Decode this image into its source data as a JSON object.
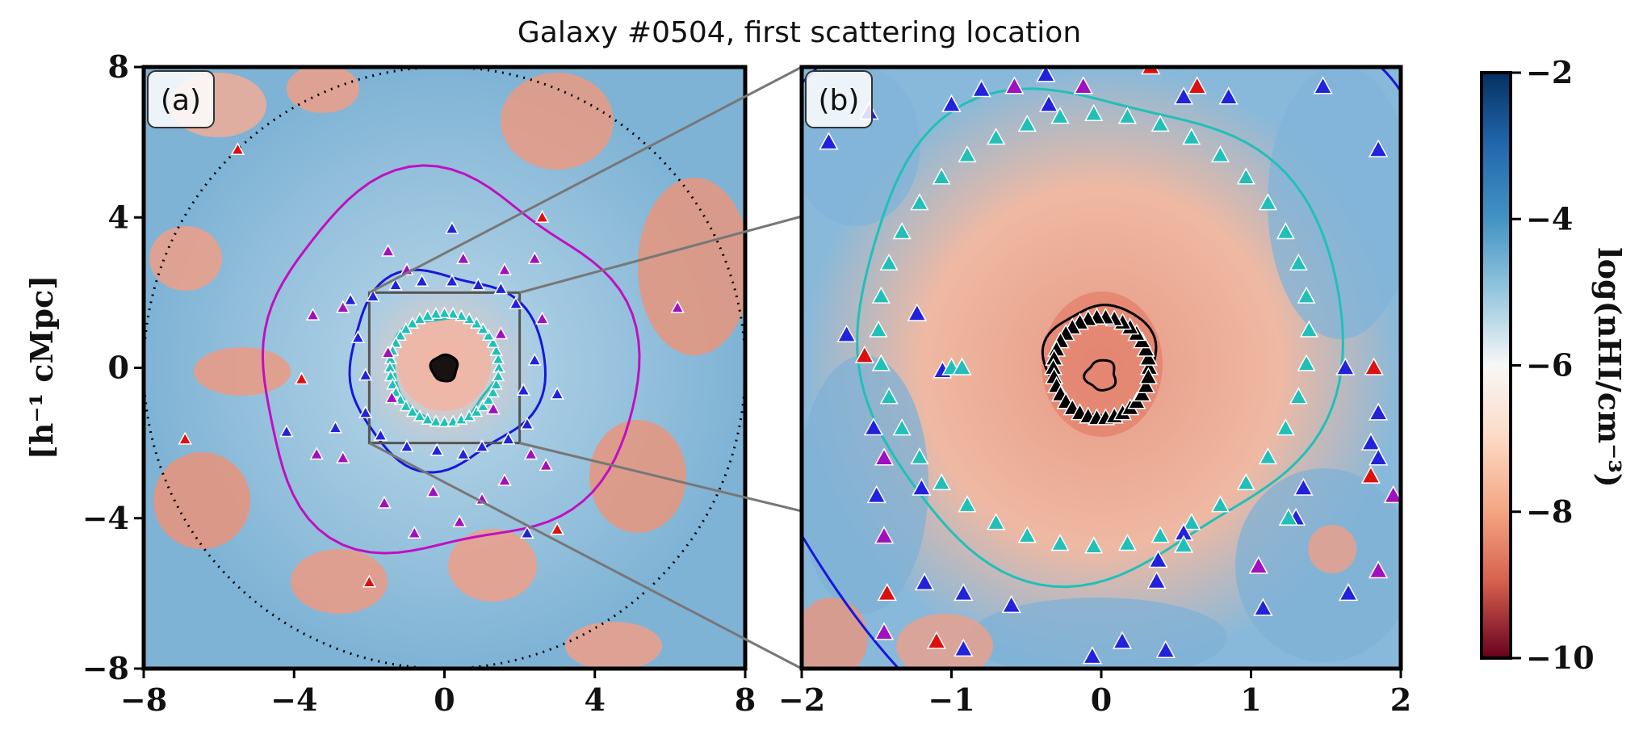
{
  "chart_data": {
    "type": "heatmap",
    "title": "Galaxy #0504, first scattering location",
    "ylabel": "[h⁻¹ cMpc]",
    "colorbar": {
      "label": "log(nₕᵢ/cm⁻³)",
      "label_display": "log(nHI/cm⁻³)",
      "range": [
        -10,
        -2
      ],
      "ticks": [
        -2,
        -4,
        -6,
        -8,
        -10
      ],
      "tick_labels": [
        "−2",
        "−4",
        "−6",
        "−8",
        "−10"
      ],
      "colormap": "RdBu"
    },
    "panels": [
      {
        "id": "a",
        "label": "(a)",
        "xlim": [
          -8,
          8
        ],
        "ylim": [
          -8,
          8
        ],
        "xticks": [
          -8,
          -4,
          0,
          4,
          8
        ],
        "xtick_labels": [
          "−8",
          "−4",
          "0",
          "4",
          "8"
        ],
        "yticks": [
          8,
          4,
          0,
          -4,
          -8
        ],
        "ytick_labels": [
          "8",
          "4",
          "0",
          "−4",
          "−8"
        ],
        "zoom_box": [
          -2,
          2,
          -2,
          2
        ],
        "dotted_circle_radius": 8,
        "contours": [
          {
            "color": "#c010c0",
            "approx_radius": 5.0
          },
          {
            "color": "#1818d8",
            "approx_radius": 2.6
          },
          {
            "color": "#20c0b8",
            "approx_radius": 1.4
          },
          {
            "color": "#000000",
            "approx_radius": 0.35
          }
        ],
        "markers": [
          {
            "x": -5.5,
            "y": 5.8,
            "c": "#dd1010"
          },
          {
            "x": -6.9,
            "y": -1.9,
            "c": "#dd1010"
          },
          {
            "x": -3.8,
            "y": -0.3,
            "c": "#dd1010"
          },
          {
            "x": -2.0,
            "y": -5.7,
            "c": "#dd1010"
          },
          {
            "x": 2.6,
            "y": 4.0,
            "c": "#dd1010"
          },
          {
            "x": 3.0,
            "y": -4.3,
            "c": "#dd1010"
          },
          {
            "x": 0.2,
            "y": 3.7,
            "c": "#2222dd"
          },
          {
            "x": -1.5,
            "y": 3.1,
            "c": "#a010c0"
          },
          {
            "x": 0.5,
            "y": 2.9,
            "c": "#a010c0"
          },
          {
            "x": 2.4,
            "y": 2.9,
            "c": "#a010c0"
          },
          {
            "x": -1.0,
            "y": 2.6,
            "c": "#a010c0"
          },
          {
            "x": 1.6,
            "y": 2.6,
            "c": "#a010c0"
          },
          {
            "x": -2.7,
            "y": 1.6,
            "c": "#a010c0"
          },
          {
            "x": -3.5,
            "y": 1.4,
            "c": "#a010c0"
          },
          {
            "x": 2.6,
            "y": 1.3,
            "c": "#a010c0"
          },
          {
            "x": -3.4,
            "y": -2.3,
            "c": "#a010c0"
          },
          {
            "x": -2.7,
            "y": -2.4,
            "c": "#a010c0"
          },
          {
            "x": 2.3,
            "y": -2.3,
            "c": "#a010c0"
          },
          {
            "x": 2.7,
            "y": -2.6,
            "c": "#a010c0"
          },
          {
            "x": -0.3,
            "y": -3.3,
            "c": "#a010c0"
          },
          {
            "x": 1.0,
            "y": -3.5,
            "c": "#a010c0"
          },
          {
            "x": 1.6,
            "y": -3.0,
            "c": "#a010c0"
          },
          {
            "x": -1.6,
            "y": -3.6,
            "c": "#a010c0"
          },
          {
            "x": 0.4,
            "y": -4.1,
            "c": "#a010c0"
          },
          {
            "x": -0.8,
            "y": -4.4,
            "c": "#a010c0"
          },
          {
            "x": 2.2,
            "y": -4.4,
            "c": "#2222dd"
          },
          {
            "x": -4.2,
            "y": -1.7,
            "c": "#2222dd"
          },
          {
            "x": -2.9,
            "y": -1.6,
            "c": "#2222dd"
          },
          {
            "x": 3.0,
            "y": -0.7,
            "c": "#2222dd"
          },
          {
            "x": -2.5,
            "y": 1.8,
            "c": "#2222dd"
          },
          {
            "x": 2.4,
            "y": 0.2,
            "c": "#2222dd"
          },
          {
            "x": -2.3,
            "y": 0.8,
            "c": "#2222dd"
          },
          {
            "x": -2.1,
            "y": -1.2,
            "c": "#2222dd"
          },
          {
            "x": 2.2,
            "y": -1.5,
            "c": "#2222dd"
          },
          {
            "x": 1.9,
            "y": 1.7,
            "c": "#2222dd"
          },
          {
            "x": -1.9,
            "y": 1.9,
            "c": "#2222dd"
          },
          {
            "x": 1.5,
            "y": 2.1,
            "c": "#2222dd"
          },
          {
            "x": -1.3,
            "y": 2.2,
            "c": "#2222dd"
          },
          {
            "x": 0.9,
            "y": 2.2,
            "c": "#2222dd"
          },
          {
            "x": -0.6,
            "y": 2.3,
            "c": "#2222dd"
          },
          {
            "x": 0.2,
            "y": 2.3,
            "c": "#2222dd"
          },
          {
            "x": -2.1,
            "y": -0.2,
            "c": "#2222dd"
          },
          {
            "x": 2.1,
            "y": -0.6,
            "c": "#2222dd"
          },
          {
            "x": -1.7,
            "y": -1.8,
            "c": "#2222dd"
          },
          {
            "x": 1.7,
            "y": -1.9,
            "c": "#2222dd"
          },
          {
            "x": -1.0,
            "y": -2.1,
            "c": "#2222dd"
          },
          {
            "x": 1.0,
            "y": -2.1,
            "c": "#2222dd"
          },
          {
            "x": -0.2,
            "y": -2.2,
            "c": "#2222dd"
          },
          {
            "x": 0.5,
            "y": -2.3,
            "c": "#2222dd"
          },
          {
            "x": -1.5,
            "y": 0.4,
            "c": "#a010c0"
          },
          {
            "x": 1.5,
            "y": 0.9,
            "c": "#a010c0"
          },
          {
            "x": -1.4,
            "y": -0.8,
            "c": "#a010c0"
          },
          {
            "x": 1.3,
            "y": -1.1,
            "c": "#a010c0"
          },
          {
            "x": 6.2,
            "y": 1.6,
            "c": "#a010c0"
          }
        ]
      },
      {
        "id": "b",
        "label": "(b)",
        "xlim": [
          -2,
          2
        ],
        "ylim": [
          -2,
          2
        ],
        "xticks": [
          -2,
          -1,
          0,
          1,
          2
        ],
        "xtick_labels": [
          "−2",
          "−1",
          "0",
          "1",
          "2"
        ],
        "contours": [
          {
            "color": "#20c0b8",
            "approx_radius": 1.3
          },
          {
            "color": "#000000",
            "approx_radius": 0.35
          },
          {
            "color": "#1818d8",
            "approx_radius": 2.6
          }
        ],
        "markers": [
          {
            "x": -1.82,
            "y": 1.5,
            "c": "#2222dd"
          },
          {
            "x": -1.55,
            "y": 1.7,
            "c": "#2222dd"
          },
          {
            "x": -1.0,
            "y": 1.75,
            "c": "#2222dd"
          },
          {
            "x": -0.8,
            "y": 1.85,
            "c": "#2222dd"
          },
          {
            "x": -0.58,
            "y": 1.87,
            "c": "#a010c0"
          },
          {
            "x": -0.35,
            "y": 1.75,
            "c": "#2222dd"
          },
          {
            "x": -0.37,
            "y": 1.95,
            "c": "#2222dd"
          },
          {
            "x": -0.12,
            "y": 1.87,
            "c": "#a010c0"
          },
          {
            "x": 0.33,
            "y": 2.0,
            "c": "#dd1010"
          },
          {
            "x": 0.55,
            "y": 1.8,
            "c": "#2222dd"
          },
          {
            "x": 0.64,
            "y": 1.87,
            "c": "#dd1010"
          },
          {
            "x": 0.85,
            "y": 1.8,
            "c": "#2222dd"
          },
          {
            "x": 1.48,
            "y": 1.87,
            "c": "#2222dd"
          },
          {
            "x": 1.85,
            "y": 1.45,
            "c": "#2222dd"
          },
          {
            "x": -1.7,
            "y": 0.22,
            "c": "#2222dd"
          },
          {
            "x": -1.58,
            "y": 0.08,
            "c": "#dd1010"
          },
          {
            "x": -1.23,
            "y": 0.36,
            "c": "#2222dd"
          },
          {
            "x": -1.06,
            "y": -0.02,
            "c": "#2222dd"
          },
          {
            "x": -1.52,
            "y": -0.4,
            "c": "#2222dd"
          },
          {
            "x": -1.45,
            "y": -0.6,
            "c": "#a010c0"
          },
          {
            "x": -1.5,
            "y": -0.85,
            "c": "#2222dd"
          },
          {
            "x": -1.45,
            "y": -1.12,
            "c": "#a010c0"
          },
          {
            "x": -1.2,
            "y": -0.8,
            "c": "#2222dd"
          },
          {
            "x": -1.18,
            "y": -1.43,
            "c": "#2222dd"
          },
          {
            "x": -0.92,
            "y": -1.5,
            "c": "#2222dd"
          },
          {
            "x": -0.6,
            "y": -1.58,
            "c": "#2222dd"
          },
          {
            "x": -1.43,
            "y": -1.5,
            "c": "#dd1010"
          },
          {
            "x": -1.45,
            "y": -1.76,
            "c": "#a010c0"
          },
          {
            "x": -1.1,
            "y": -1.82,
            "c": "#dd1010"
          },
          {
            "x": -0.92,
            "y": -1.87,
            "c": "#2222dd"
          },
          {
            "x": 0.43,
            "y": -1.88,
            "c": "#2222dd"
          },
          {
            "x": 0.14,
            "y": -1.82,
            "c": "#2222dd"
          },
          {
            "x": -0.06,
            "y": -1.92,
            "c": "#2222dd"
          },
          {
            "x": 1.08,
            "y": -1.6,
            "c": "#2222dd"
          },
          {
            "x": 1.65,
            "y": -1.5,
            "c": "#2222dd"
          },
          {
            "x": 1.85,
            "y": -1.35,
            "c": "#a010c0"
          },
          {
            "x": 1.63,
            "y": 0.0,
            "c": "#2222dd"
          },
          {
            "x": 1.82,
            "y": 0.0,
            "c": "#dd1010"
          },
          {
            "x": 1.85,
            "y": -0.3,
            "c": "#2222dd"
          },
          {
            "x": 1.8,
            "y": -0.5,
            "c": "#2222dd"
          },
          {
            "x": 1.85,
            "y": -0.6,
            "c": "#2222dd"
          },
          {
            "x": 1.8,
            "y": -0.72,
            "c": "#dd1010"
          },
          {
            "x": 1.95,
            "y": -0.85,
            "c": "#a010c0"
          },
          {
            "x": 1.35,
            "y": -0.8,
            "c": "#2222dd"
          },
          {
            "x": 1.3,
            "y": -1.0,
            "c": "#2222dd"
          },
          {
            "x": 0.55,
            "y": -1.1,
            "c": "#2222dd"
          },
          {
            "x": 0.38,
            "y": -1.28,
            "c": "#2222dd"
          },
          {
            "x": 0.37,
            "y": -1.42,
            "c": "#2222dd"
          },
          {
            "x": 1.05,
            "y": -1.32,
            "c": "#a010c0"
          },
          {
            "x": 0.55,
            "y": -1.18,
            "c": "#20c0b8"
          },
          {
            "x": 1.25,
            "y": -1.0,
            "c": "#20c0b8"
          },
          {
            "x": -1.0,
            "y": 0.0,
            "c": "#20c0b8"
          },
          {
            "x": -0.93,
            "y": 0.0,
            "c": "#20c0b8"
          }
        ],
        "ring_markers": {
          "color": "#20c0b8",
          "count": 40,
          "radius": 1.25
        },
        "black_ring": {
          "color": "#000000",
          "count": 34,
          "radius": 0.32
        }
      }
    ]
  }
}
